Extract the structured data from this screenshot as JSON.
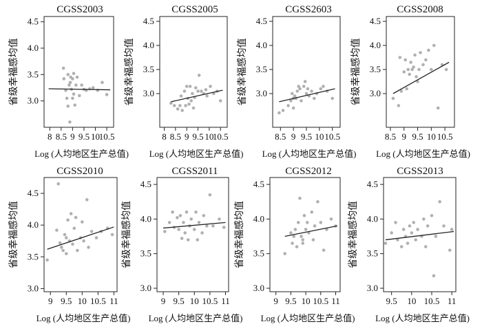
{
  "figure": {
    "colors": {
      "points": "#b0b0b0",
      "fit_line": "#222222",
      "axes": "#222222"
    }
  },
  "chart_data": [
    {
      "type": "scatter",
      "title": "CGSS2003",
      "ylabel": "省级幸福感均值",
      "xlabel": "Log (人均地区生产总值)",
      "xlim": [
        7.75,
        10.8
      ],
      "ylim": [
        2.5,
        4.6
      ],
      "xticks": [
        8,
        8.5,
        9,
        9.5,
        10,
        10.5
      ],
      "xtick_labels": [
        "8",
        "8.5",
        "9",
        "9.5",
        "10",
        "10.5"
      ],
      "yticks": [
        3.0,
        3.5,
        4.0,
        4.5
      ],
      "ytick_labels": [
        "3.0",
        "3.5",
        "4.0",
        "4.5"
      ],
      "fit_line": {
        "x": [
          7.95,
          10.65
        ],
        "y": [
          3.23,
          3.21
        ]
      },
      "points": [
        [
          8.6,
          3.62
        ],
        [
          8.62,
          3.42
        ],
        [
          8.7,
          3.2
        ],
        [
          8.75,
          3.05
        ],
        [
          8.8,
          2.9
        ],
        [
          8.8,
          3.5
        ],
        [
          8.85,
          3.3
        ],
        [
          8.88,
          2.6
        ],
        [
          8.92,
          3.45
        ],
        [
          8.95,
          3.22
        ],
        [
          9.0,
          3.42
        ],
        [
          9.0,
          3.05
        ],
        [
          9.05,
          3.13
        ],
        [
          9.1,
          2.92
        ],
        [
          9.15,
          3.3
        ],
        [
          9.2,
          3.45
        ],
        [
          9.3,
          3.1
        ],
        [
          9.4,
          3.3
        ],
        [
          9.5,
          3.22
        ],
        [
          9.6,
          3.2
        ],
        [
          9.75,
          3.23
        ],
        [
          9.9,
          3.25
        ],
        [
          10.1,
          3.2
        ],
        [
          10.3,
          3.35
        ],
        [
          10.5,
          3.12
        ],
        [
          9.05,
          3.52
        ],
        [
          8.9,
          3.35
        ]
      ]
    },
    {
      "type": "scatter",
      "title": "CGSS2005",
      "ylabel": "省级幸福感均值",
      "xlabel": "Log (人均地区生产总值)",
      "xlim": [
        7.8,
        10.8
      ],
      "ylim": [
        2.3,
        4.6
      ],
      "xticks": [
        8,
        8.5,
        9,
        9.5,
        10,
        10.5
      ],
      "xtick_labels": [
        "8",
        "8.5",
        "9",
        "9.5",
        "10",
        "10.5"
      ],
      "yticks": [
        3.0,
        3.5,
        4.0,
        4.5
      ],
      "ytick_labels": [
        "3.0",
        "3.5",
        "4.0",
        "4.5"
      ],
      "fit_line": {
        "x": [
          8.3,
          10.6
        ],
        "y": [
          2.83,
          3.07
        ]
      },
      "points": [
        [
          8.3,
          2.8
        ],
        [
          8.45,
          2.75
        ],
        [
          8.6,
          2.68
        ],
        [
          8.7,
          2.75
        ],
        [
          8.75,
          2.95
        ],
        [
          8.8,
          2.65
        ],
        [
          8.9,
          3.05
        ],
        [
          8.95,
          2.75
        ],
        [
          9.0,
          3.15
        ],
        [
          9.05,
          2.9
        ],
        [
          9.1,
          2.78
        ],
        [
          9.15,
          3.15
        ],
        [
          9.2,
          2.85
        ],
        [
          9.25,
          3.0
        ],
        [
          9.3,
          2.7
        ],
        [
          9.4,
          3.12
        ],
        [
          9.5,
          3.05
        ],
        [
          9.55,
          3.38
        ],
        [
          9.65,
          3.05
        ],
        [
          9.75,
          3.0
        ],
        [
          9.9,
          2.95
        ],
        [
          10.05,
          3.15
        ],
        [
          10.2,
          3.0
        ],
        [
          10.35,
          3.05
        ],
        [
          10.5,
          2.85
        ],
        [
          9.35,
          2.92
        ],
        [
          9.85,
          3.08
        ]
      ]
    },
    {
      "type": "scatter",
      "title": "CGSS2603",
      "ylabel": "省级幸福感均值",
      "xlabel": "Log (人均地区生产总值)",
      "xlim": [
        8.2,
        10.8
      ],
      "ylim": [
        2.3,
        4.6
      ],
      "xticks": [
        8.5,
        9,
        9.5,
        10,
        10.5
      ],
      "xtick_labels": [
        "8.5",
        "9",
        "9.5",
        "10",
        "10.5"
      ],
      "yticks": [
        3.0,
        3.5,
        4.0,
        4.5
      ],
      "ytick_labels": [
        "3.0",
        "3.5",
        "4.0",
        "4.5"
      ],
      "fit_line": {
        "x": [
          8.45,
          10.6
        ],
        "y": [
          2.83,
          3.1
        ]
      },
      "points": [
        [
          8.45,
          2.6
        ],
        [
          8.6,
          2.65
        ],
        [
          8.8,
          2.75
        ],
        [
          8.9,
          2.85
        ],
        [
          8.95,
          3.0
        ],
        [
          9.0,
          2.7
        ],
        [
          9.05,
          2.95
        ],
        [
          9.1,
          2.9
        ],
        [
          9.15,
          3.05
        ],
        [
          9.2,
          3.15
        ],
        [
          9.25,
          3.1
        ],
        [
          9.3,
          2.85
        ],
        [
          9.4,
          3.15
        ],
        [
          9.5,
          3.0
        ],
        [
          9.55,
          3.1
        ],
        [
          9.6,
          2.95
        ],
        [
          9.7,
          3.05
        ],
        [
          9.8,
          2.9
        ],
        [
          9.9,
          3.0
        ],
        [
          10.05,
          3.1
        ],
        [
          10.15,
          3.15
        ],
        [
          10.3,
          3.05
        ],
        [
          10.5,
          2.9
        ],
        [
          9.45,
          3.25
        ],
        [
          9.0,
          2.9
        ]
      ]
    },
    {
      "type": "scatter",
      "title": "CGSS2008",
      "ylabel": "省级幸福感均值",
      "xlabel": "Log (人均地区生产总值)",
      "xlim": [
        8.35,
        10.85
      ],
      "ylim": [
        2.3,
        4.6
      ],
      "xticks": [
        8.5,
        9,
        9.5,
        10,
        10.5
      ],
      "xtick_labels": [
        "8.5",
        "9",
        "9.5",
        "10",
        "10.5"
      ],
      "yticks": [
        3.0,
        3.5,
        4.0,
        4.5
      ],
      "ytick_labels": [
        "3.0",
        "3.5",
        "4.0",
        "4.5"
      ],
      "fit_line": {
        "x": [
          8.6,
          10.65
        ],
        "y": [
          3.0,
          3.65
        ]
      },
      "points": [
        [
          8.6,
          2.9
        ],
        [
          8.8,
          2.75
        ],
        [
          8.85,
          3.75
        ],
        [
          8.9,
          3.05
        ],
        [
          9.0,
          3.45
        ],
        [
          9.05,
          3.7
        ],
        [
          9.1,
          3.1
        ],
        [
          9.15,
          3.5
        ],
        [
          9.2,
          3.4
        ],
        [
          9.25,
          3.65
        ],
        [
          9.3,
          3.5
        ],
        [
          9.35,
          3.55
        ],
        [
          9.4,
          3.8
        ],
        [
          9.5,
          3.25
        ],
        [
          9.55,
          3.5
        ],
        [
          9.6,
          3.85
        ],
        [
          9.7,
          3.6
        ],
        [
          9.8,
          3.7
        ],
        [
          9.9,
          3.9
        ],
        [
          10.0,
          3.5
        ],
        [
          10.1,
          4.0
        ],
        [
          10.25,
          2.7
        ],
        [
          10.4,
          3.6
        ],
        [
          10.55,
          3.5
        ],
        [
          9.45,
          3.35
        ]
      ]
    },
    {
      "type": "scatter",
      "title": "CGSS2010",
      "ylabel": "省级幸福感均值",
      "xlabel": "Log (人均地区生产总值)",
      "xlim": [
        8.8,
        11.1
      ],
      "ylim": [
        2.95,
        4.75
      ],
      "xticks": [
        9,
        9.5,
        10,
        10.5,
        11
      ],
      "xtick_labels": [
        "9",
        "9.5",
        "10",
        "10.5",
        "11"
      ],
      "yticks": [
        3.0,
        3.5,
        4.0,
        4.5
      ],
      "ytick_labels": [
        "3.0",
        "3.5",
        "4.0",
        "4.5"
      ],
      "fit_line": {
        "x": [
          8.9,
          11.0
        ],
        "y": [
          3.62,
          3.97
        ]
      },
      "points": [
        [
          8.9,
          3.45
        ],
        [
          9.2,
          3.92
        ],
        [
          9.25,
          4.65
        ],
        [
          9.3,
          3.72
        ],
        [
          9.35,
          3.65
        ],
        [
          9.4,
          3.6
        ],
        [
          9.45,
          3.85
        ],
        [
          9.5,
          3.8
        ],
        [
          9.5,
          3.55
        ],
        [
          9.55,
          4.08
        ],
        [
          9.6,
          3.75
        ],
        [
          9.65,
          4.18
        ],
        [
          9.7,
          3.7
        ],
        [
          9.75,
          3.95
        ],
        [
          9.8,
          4.12
        ],
        [
          9.85,
          3.6
        ],
        [
          9.95,
          3.8
        ],
        [
          10.05,
          3.75
        ],
        [
          10.15,
          4.4
        ],
        [
          10.2,
          3.65
        ],
        [
          10.3,
          3.9
        ],
        [
          10.45,
          3.8
        ],
        [
          10.6,
          3.9
        ],
        [
          10.8,
          3.95
        ],
        [
          10.95,
          3.85
        ],
        [
          10.0,
          4.05
        ]
      ]
    },
    {
      "type": "scatter",
      "title": "CGSS2011",
      "ylabel": "省级幸福感均值",
      "xlabel": "Log (人均地区生产总值)",
      "xlim": [
        8.8,
        11.1
      ],
      "ylim": [
        2.95,
        4.6
      ],
      "xticks": [
        9,
        9.5,
        10,
        10.5,
        11
      ],
      "xtick_labels": [
        "9",
        "9.5",
        "10",
        "10.5",
        "11"
      ],
      "yticks": [
        3.0,
        3.5,
        4.0,
        4.5
      ],
      "ytick_labels": [
        "3.0",
        "3.5",
        "4.0",
        "4.5"
      ],
      "fit_line": {
        "x": [
          9.0,
          11.0
        ],
        "y": [
          3.87,
          3.95
        ]
      },
      "points": [
        [
          9.05,
          3.82
        ],
        [
          9.2,
          3.95
        ],
        [
          9.3,
          4.1
        ],
        [
          9.35,
          3.88
        ],
        [
          9.45,
          4.02
        ],
        [
          9.5,
          3.85
        ],
        [
          9.55,
          4.05
        ],
        [
          9.6,
          3.72
        ],
        [
          9.65,
          3.95
        ],
        [
          9.7,
          3.8
        ],
        [
          9.75,
          4.1
        ],
        [
          9.8,
          3.7
        ],
        [
          9.85,
          3.9
        ],
        [
          9.9,
          4.0
        ],
        [
          10.0,
          3.85
        ],
        [
          10.05,
          4.1
        ],
        [
          10.15,
          3.95
        ],
        [
          10.25,
          3.8
        ],
        [
          10.3,
          4.05
        ],
        [
          10.4,
          3.9
        ],
        [
          10.5,
          4.35
        ],
        [
          10.6,
          3.9
        ],
        [
          10.8,
          4.0
        ],
        [
          10.95,
          3.88
        ],
        [
          10.1,
          3.7
        ]
      ]
    },
    {
      "type": "scatter",
      "title": "CGSS2012",
      "ylabel": "省级幸福感均值",
      "xlabel": "Log (人均地区生产总值)",
      "xlim": [
        8.8,
        11.15
      ],
      "ylim": [
        2.95,
        4.6
      ],
      "xticks": [
        9,
        9.5,
        10,
        10.5,
        11
      ],
      "xtick_labels": [
        "9",
        "9.5",
        "10",
        "10.5",
        "11"
      ],
      "yticks": [
        3.0,
        3.5,
        4.0,
        4.5
      ],
      "ytick_labels": [
        "3.0",
        "3.5",
        "4.0",
        "4.5"
      ],
      "fit_line": {
        "x": [
          9.3,
          11.05
        ],
        "y": [
          3.75,
          3.9
        ]
      },
      "points": [
        [
          9.3,
          3.5
        ],
        [
          9.5,
          3.8
        ],
        [
          9.55,
          3.65
        ],
        [
          9.6,
          3.75
        ],
        [
          9.65,
          3.85
        ],
        [
          9.7,
          3.6
        ],
        [
          9.75,
          3.95
        ],
        [
          9.8,
          4.3
        ],
        [
          9.85,
          3.75
        ],
        [
          9.9,
          3.7
        ],
        [
          9.95,
          4.05
        ],
        [
          10.0,
          3.85
        ],
        [
          10.05,
          3.95
        ],
        [
          10.1,
          3.8
        ],
        [
          10.2,
          4.1
        ],
        [
          10.3,
          3.9
        ],
        [
          10.4,
          4.25
        ],
        [
          10.5,
          3.95
        ],
        [
          10.6,
          3.55
        ],
        [
          10.7,
          3.85
        ],
        [
          10.85,
          4.0
        ],
        [
          11.0,
          3.9
        ],
        [
          9.9,
          3.65
        ],
        [
          10.25,
          3.7
        ]
      ]
    },
    {
      "type": "scatter",
      "title": "CGSS2013",
      "ylabel": "省级幸福感均值",
      "xlabel": "Log (人均地区生产总值)",
      "xlim": [
        9.3,
        11.1
      ],
      "ylim": [
        2.95,
        4.6
      ],
      "xticks": [
        9.5,
        10,
        10.5,
        11
      ],
      "xtick_labels": [
        "9.5",
        "10",
        "10.5",
        "11"
      ],
      "yticks": [
        3.0,
        3.5,
        4.0,
        4.5
      ],
      "ytick_labels": [
        "3.0",
        "3.5",
        "4.0",
        "4.5"
      ],
      "fit_line": {
        "x": [
          9.35,
          11.05
        ],
        "y": [
          3.7,
          3.82
        ]
      },
      "points": [
        [
          9.35,
          3.65
        ],
        [
          9.5,
          3.8
        ],
        [
          9.6,
          3.95
        ],
        [
          9.65,
          3.7
        ],
        [
          9.75,
          3.6
        ],
        [
          9.8,
          3.85
        ],
        [
          9.85,
          3.75
        ],
        [
          9.9,
          3.65
        ],
        [
          9.95,
          3.9
        ],
        [
          10.0,
          3.8
        ],
        [
          10.05,
          3.95
        ],
        [
          10.1,
          3.7
        ],
        [
          10.15,
          3.85
        ],
        [
          10.25,
          3.75
        ],
        [
          10.35,
          3.6
        ],
        [
          10.4,
          3.9
        ],
        [
          10.5,
          4.05
        ],
        [
          10.55,
          3.18
        ],
        [
          10.6,
          3.75
        ],
        [
          10.7,
          4.25
        ],
        [
          10.8,
          3.9
        ],
        [
          10.95,
          3.55
        ],
        [
          11.0,
          3.85
        ],
        [
          10.3,
          4.0
        ]
      ]
    }
  ]
}
